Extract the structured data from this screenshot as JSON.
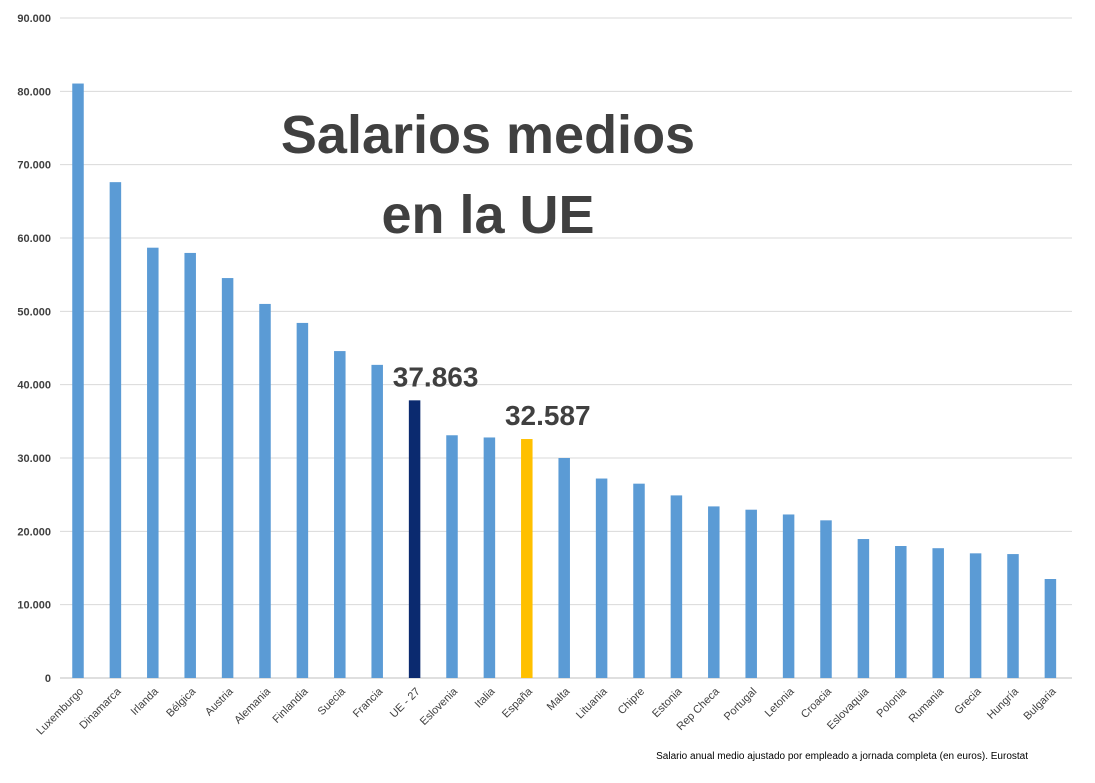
{
  "chart_data": {
    "type": "bar",
    "title_lines": [
      "Salarios medios",
      "en la UE"
    ],
    "source_note": "Salario anual medio ajustado por empleado a jornada completa (en euros). Eurostat",
    "categories": [
      "Luxemburgo",
      "Dinamarca",
      "Irlanda",
      "Bélgica",
      "Austria",
      "Alemania",
      "Finlandia",
      "Suecia",
      "Francia",
      "UE - 27",
      "Eslovenia",
      "Italia",
      "España",
      "Malta",
      "Lituania",
      "Chipre",
      "Estonia",
      "Rep Checa",
      "Portugal",
      "Letonia",
      "Croacia",
      "Eslovaquia",
      "Polonia",
      "Rumania",
      "Grecia",
      "Hungría",
      "Bulgaria"
    ],
    "values": [
      81064,
      67616,
      58679,
      57963,
      54537,
      51009,
      48420,
      44580,
      42700,
      37863,
      33100,
      32800,
      32587,
      30000,
      27200,
      26500,
      24900,
      23400,
      22950,
      22300,
      21500,
      18950,
      18000,
      17700,
      17000,
      16900,
      13500
    ],
    "ylim": [
      0,
      90000
    ],
    "yticks": [
      "0",
      "10.000",
      "20.000",
      "30.000",
      "40.000",
      "50.000",
      "60.000",
      "70.000",
      "80.000",
      "90.000"
    ],
    "grid": true,
    "colors": {
      "default": "#5B9BD5",
      "UE - 27": "#0B2A6F",
      "España": "#FFC000",
      "text": "#404040",
      "grid": "#D9D9D9"
    },
    "data_labels": [
      {
        "category": "UE - 27",
        "text": "37.863"
      },
      {
        "category": "España",
        "text": "32.587"
      }
    ]
  }
}
